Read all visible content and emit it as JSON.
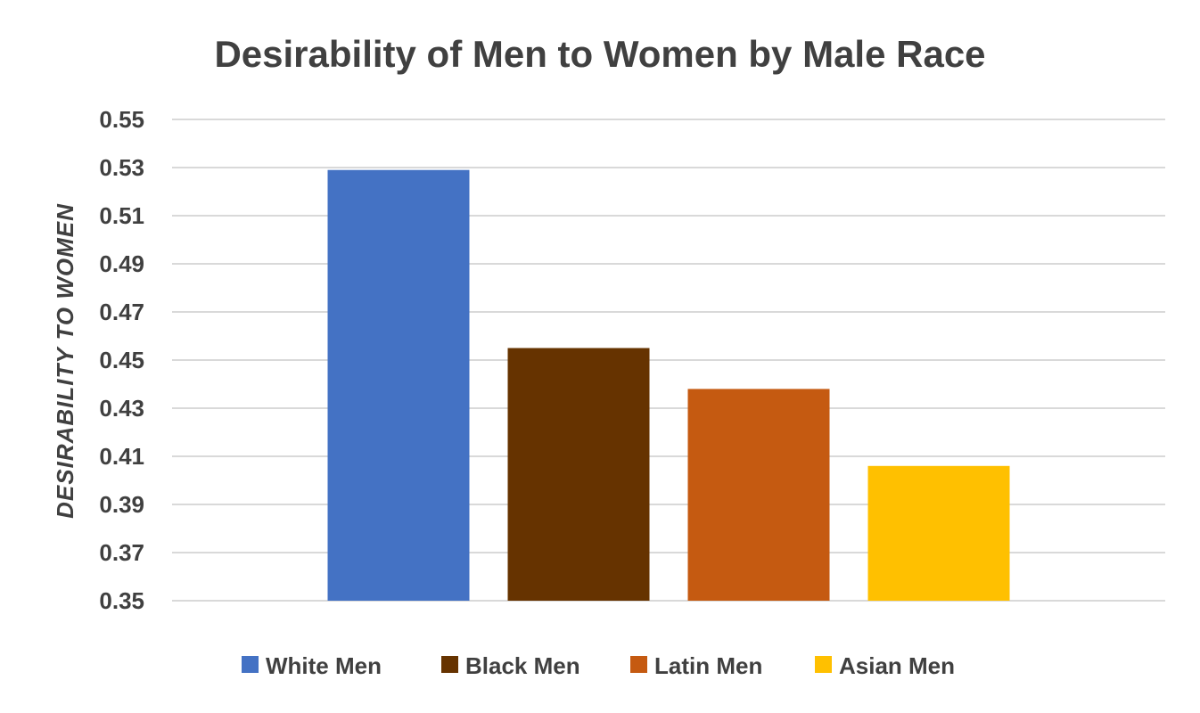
{
  "chart_data": {
    "type": "bar",
    "title": "Desirability of Men to Women by Male Race",
    "xlabel": "",
    "ylabel": "DESIRABILITY TO WOMEN",
    "ylim": [
      0.35,
      0.55
    ],
    "y_ticks": [
      "0.35",
      "0.37",
      "0.39",
      "0.41",
      "0.43",
      "0.45",
      "0.47",
      "0.49",
      "0.51",
      "0.53",
      "0.55"
    ],
    "grid": true,
    "legend_position": "bottom",
    "series": [
      {
        "name": "White Men",
        "values": [
          0.529
        ],
        "color": "#4472C4"
      },
      {
        "name": "Black Men",
        "values": [
          0.455
        ],
        "color": "#663300"
      },
      {
        "name": "Latin Men",
        "values": [
          0.438
        ],
        "color": "#C55A11"
      },
      {
        "name": "Asian Men",
        "values": [
          0.406
        ],
        "color": "#FFC000"
      }
    ]
  }
}
